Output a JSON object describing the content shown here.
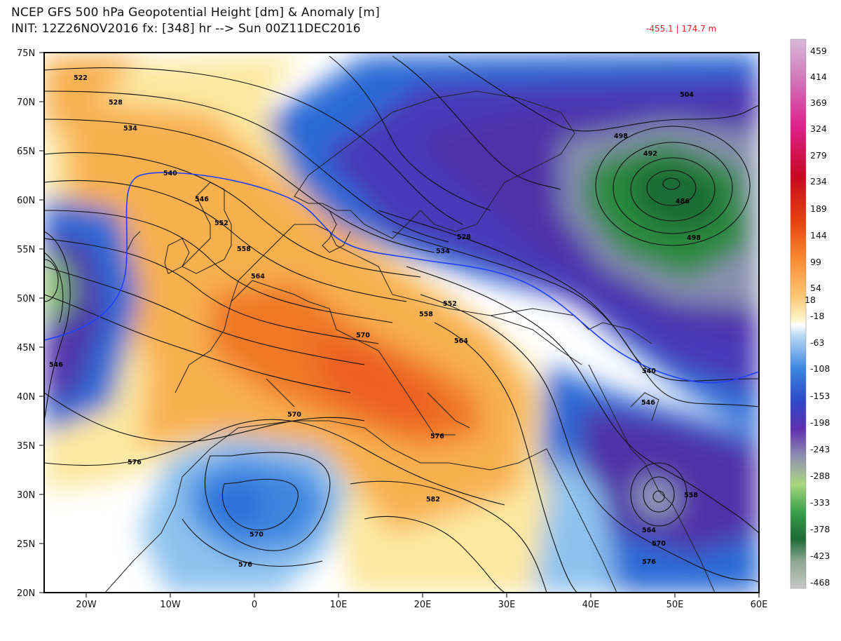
{
  "header": {
    "title_line1": "NCEP GFS 500 hPa Geopotential Height [dm] & Anomaly [m]",
    "title_line2": "INIT: 12Z26NOV2016 fx: [348] hr --> Sun 00Z11DEC2016",
    "range_readout": "-455.1 | 174.7 m"
  },
  "map": {
    "lat_ticks": [
      "75N",
      "70N",
      "65N",
      "60N",
      "55N",
      "50N",
      "45N",
      "40N",
      "35N",
      "30N",
      "25N",
      "20N"
    ],
    "lon_ticks": [
      "20W",
      "10W",
      "0",
      "10E",
      "20E",
      "30E",
      "40E",
      "50E",
      "60E"
    ],
    "contour_labels": [
      "522",
      "528",
      "534",
      "540",
      "546",
      "552",
      "558",
      "564",
      "570",
      "576",
      "546",
      "552",
      "558",
      "564",
      "570",
      "576",
      "582",
      "528",
      "534",
      "504",
      "498",
      "492",
      "486",
      "498",
      "540",
      "546",
      "558",
      "564",
      "570",
      "576",
      "570",
      "576"
    ],
    "colors": {
      "positive_strong": "#f07828",
      "positive_mid": "#f8b050",
      "positive_weak": "#fde8a0",
      "negative_weak": "#8ec2ee",
      "negative_mid": "#2a6ad6",
      "negative_strong": "#5030a8",
      "negative_extreme": "#2a8a3c",
      "contour_540": "#2040ff"
    }
  },
  "colorbar": {
    "labels": [
      "459",
      "414",
      "369",
      "324",
      "279",
      "234",
      "189",
      "144",
      "99",
      "54",
      "18",
      "-18",
      "-63",
      "-108",
      "-153",
      "-198",
      "-243",
      "-288",
      "-333",
      "-378",
      "-423",
      "-468"
    ]
  }
}
